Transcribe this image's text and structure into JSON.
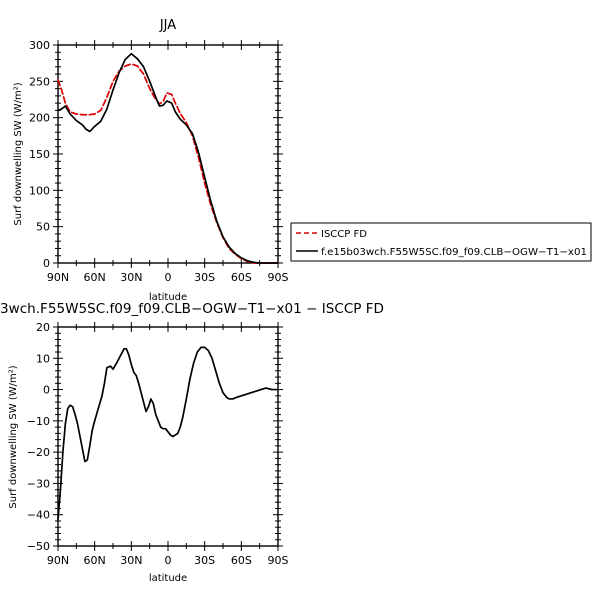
{
  "chart_data": [
    {
      "type": "line",
      "title": "JJA",
      "xlabel": "latitude",
      "ylabel": "Surf downwelling SW (W/m²)",
      "xlim": [
        90,
        -90
      ],
      "ylim": [
        0,
        300
      ],
      "xticks": [
        90,
        60,
        30,
        0,
        -30,
        -60,
        -90
      ],
      "xtick_labels": [
        "90N",
        "60N",
        "30N",
        "0",
        "30S",
        "60S",
        "90S"
      ],
      "yticks": [
        0,
        50,
        100,
        150,
        200,
        250,
        300
      ],
      "ytick_labels": [
        "0",
        "50",
        "100",
        "150",
        "200",
        "250",
        "300"
      ],
      "legend_position": "right",
      "series": [
        {
          "name": "ISCCP FD",
          "color": "#e00000",
          "dash": "dashed",
          "x": [
            90,
            87,
            84,
            80,
            75,
            70,
            65,
            60,
            55,
            50,
            45,
            40,
            35,
            30,
            25,
            20,
            15,
            10,
            7,
            4,
            1,
            -3,
            -6,
            -10,
            -15,
            -20,
            -25,
            -30,
            -35,
            -40,
            -45,
            -50,
            -55,
            -60,
            -65,
            -70,
            -75,
            -80,
            -85,
            -90
          ],
          "y": [
            252,
            238,
            220,
            208,
            205,
            204,
            204,
            205,
            210,
            228,
            250,
            264,
            271,
            274,
            271,
            260,
            240,
            225,
            219,
            222,
            234,
            232,
            220,
            206,
            193,
            175,
            145,
            110,
            80,
            55,
            35,
            20,
            12,
            6,
            2,
            0,
            0,
            0,
            0,
            0
          ]
        },
        {
          "name": "f.e15b03wch.F55W5SC.f09_f09.CLB−OGW−T1−x01",
          "color": "#000000",
          "dash": "solid",
          "x": [
            90,
            87,
            84,
            80,
            75,
            70,
            67,
            64,
            60,
            55,
            50,
            45,
            40,
            35,
            30,
            25,
            20,
            15,
            10,
            7,
            4,
            1,
            -3,
            -6,
            -10,
            -15,
            -20,
            -25,
            -30,
            -35,
            -40,
            -45,
            -50,
            -55,
            -60,
            -65,
            -70,
            -75,
            -80,
            -85,
            -90
          ],
          "y": [
            210,
            212,
            216,
            205,
            196,
            190,
            184,
            181,
            188,
            195,
            212,
            238,
            262,
            280,
            288,
            281,
            270,
            250,
            228,
            216,
            217,
            223,
            220,
            208,
            198,
            190,
            178,
            152,
            118,
            85,
            57,
            36,
            22,
            13,
            7,
            3,
            1,
            0,
            0,
            0,
            0
          ]
        }
      ]
    },
    {
      "type": "line",
      "title": "3wch.F55W5SC.f09_f09.CLB−OGW−T1−x01 − ISCCP FD",
      "xlabel": "latitude",
      "ylabel": "Surf downwelling SW (W/m²)",
      "xlim": [
        90,
        -90
      ],
      "ylim": [
        -50,
        20
      ],
      "xticks": [
        90,
        60,
        30,
        0,
        -30,
        -60,
        -90
      ],
      "xtick_labels": [
        "90N",
        "60N",
        "30N",
        "0",
        "30S",
        "60S",
        "90S"
      ],
      "yticks": [
        -50,
        -40,
        -30,
        -20,
        -10,
        0,
        10,
        20
      ],
      "ytick_labels": [
        "−50",
        "−40",
        "−30",
        "−20",
        "−10",
        "0",
        "10",
        "20"
      ],
      "series": [
        {
          "color": "#000000",
          "dash": "solid",
          "x": [
            90,
            88,
            86,
            84,
            82,
            80,
            78,
            76,
            74,
            72,
            70,
            68,
            66,
            64,
            62,
            60,
            57,
            54,
            52,
            50,
            47,
            45,
            42,
            40,
            38,
            36,
            34,
            32,
            30,
            28,
            26,
            24,
            22,
            20,
            18,
            16,
            14,
            12,
            10,
            8,
            6,
            4,
            2,
            0,
            -2,
            -4,
            -6,
            -8,
            -10,
            -12,
            -15,
            -18,
            -21,
            -24,
            -27,
            -30,
            -33,
            -36,
            -39,
            -42,
            -45,
            -48,
            -50,
            -53,
            -56,
            -60,
            -64,
            -68,
            -72,
            -76,
            -80,
            -85,
            -90
          ],
          "y": [
            -41.5,
            -32,
            -20,
            -11,
            -6,
            -5,
            -5.5,
            -8,
            -11,
            -15,
            -19,
            -23,
            -22.5,
            -18,
            -13,
            -10,
            -6,
            -2,
            2,
            7,
            7.5,
            6.5,
            8.5,
            10,
            11.5,
            13,
            13,
            11,
            8,
            5.5,
            4.5,
            2,
            -1,
            -4,
            -7,
            -5.5,
            -3,
            -4.5,
            -8,
            -10,
            -12,
            -12.5,
            -12.5,
            -13.5,
            -14.5,
            -15,
            -14.5,
            -14,
            -12,
            -9,
            -3,
            3.5,
            8.5,
            12,
            13.5,
            13.5,
            12.5,
            10,
            6,
            2,
            -1,
            -2.5,
            -3,
            -3,
            -2.5,
            -2,
            -1.5,
            -1,
            -0.5,
            0,
            0.5,
            0,
            0
          ]
        }
      ]
    }
  ]
}
